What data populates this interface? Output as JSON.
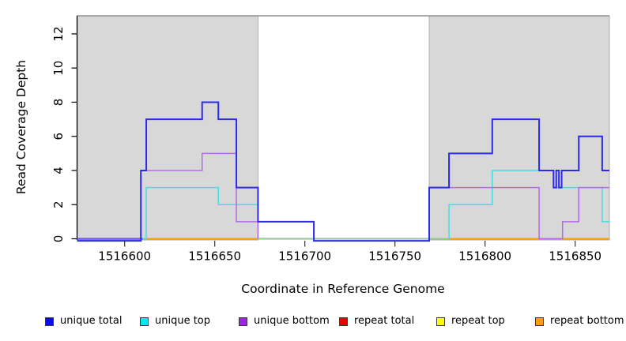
{
  "figure": {
    "x_axis": {
      "label": "Coordinate in Reference Genome",
      "ticks": [
        1516600,
        1516650,
        1516700,
        1516750,
        1516800,
        1516850
      ]
    },
    "y_axis": {
      "label": "Read Coverage Depth",
      "ticks": [
        0,
        2,
        4,
        6,
        8,
        10,
        12
      ]
    }
  },
  "legend": {
    "items": [
      {
        "label": "unique total",
        "color": "#0b0bf0"
      },
      {
        "label": "unique top",
        "color": "#00e8f0"
      },
      {
        "label": "unique bottom",
        "color": "#a020f0"
      },
      {
        "label": "repeat total",
        "color": "#ee0000"
      },
      {
        "label": "repeat top",
        "color": "#ffff00"
      },
      {
        "label": "repeat bottom",
        "color": "#ffa000"
      }
    ]
  },
  "chart_data": {
    "type": "line",
    "subtype": "step-after",
    "title": "",
    "xlabel": "Coordinate in Reference Genome",
    "ylabel": "Read Coverage Depth",
    "xlim": [
      1516573.6,
      1516869
    ],
    "ylim": [
      0,
      13.06
    ],
    "grid": false,
    "legend_position": "bottom",
    "x_ticks": [
      1516600,
      1516650,
      1516700,
      1516750,
      1516800,
      1516850
    ],
    "y_ticks": [
      0,
      2,
      4,
      6,
      8,
      10,
      12
    ],
    "shaded_regions": [
      {
        "from": 1516573.6,
        "to": 1516674,
        "fill": "#d8d8d8",
        "stroke": "#aeaeae"
      },
      {
        "from": 1516769,
        "to": 1516869,
        "fill": "#d8d8d8",
        "stroke": "#aeaeae"
      }
    ],
    "top_rule_y": 13.06,
    "series": [
      {
        "name": "unique total",
        "color": "#2b2be8",
        "width": 2.0,
        "zero_draw_offset": -0.12,
        "steps": [
          [
            1516573.6,
            0
          ],
          [
            1516609,
            4
          ],
          [
            1516612,
            7
          ],
          [
            1516643,
            8
          ],
          [
            1516652,
            7
          ],
          [
            1516662,
            3
          ],
          [
            1516674,
            1
          ],
          [
            1516705,
            0
          ],
          [
            1516769,
            3
          ],
          [
            1516780,
            5
          ],
          [
            1516804,
            7
          ],
          [
            1516830,
            4
          ],
          [
            1516838,
            3
          ],
          [
            1516839.5,
            4
          ],
          [
            1516841,
            3
          ],
          [
            1516842.5,
            4
          ],
          [
            1516852,
            6
          ],
          [
            1516865,
            4
          ]
        ]
      },
      {
        "name": "unique top",
        "color": "#44dde4",
        "width": 1.5,
        "steps": [
          [
            1516573.6,
            0
          ],
          [
            1516612,
            3
          ],
          [
            1516652,
            2
          ],
          [
            1516674,
            0
          ],
          [
            1516780,
            2
          ],
          [
            1516804,
            4
          ],
          [
            1516838,
            3
          ],
          [
            1516865,
            1
          ]
        ]
      },
      {
        "name": "unique bottom",
        "color": "#b36ae8",
        "width": 1.5,
        "steps": [
          [
            1516573.6,
            0
          ],
          [
            1516609,
            4
          ],
          [
            1516643,
            5
          ],
          [
            1516662,
            1
          ],
          [
            1516674,
            0
          ],
          [
            1516769,
            3
          ],
          [
            1516830,
            0
          ],
          [
            1516843,
            1
          ],
          [
            1516852,
            3
          ]
        ]
      },
      {
        "name": "repeat total",
        "color": "#ee0000",
        "width": 1.4,
        "steps": [
          [
            1516573.6,
            0
          ]
        ]
      },
      {
        "name": "repeat top",
        "color": "#f0f000",
        "width": 1.4,
        "steps": [
          [
            1516573.6,
            0
          ]
        ]
      },
      {
        "name": "repeat bottom",
        "color": "#ff9d00",
        "width": 1.8,
        "steps": [
          [
            1516573.6,
            0
          ]
        ]
      }
    ],
    "zero_overlays": [
      {
        "from": 1516573.6,
        "to": 1516610,
        "color": "#6f5ae0",
        "width": 2.2
      },
      {
        "from": 1516610,
        "to": 1516612.5,
        "color": "#5adce0",
        "width": 1.6
      },
      {
        "from": 1516674,
        "to": 1516780,
        "color": "#8fcf90",
        "width": 1.6
      }
    ]
  }
}
